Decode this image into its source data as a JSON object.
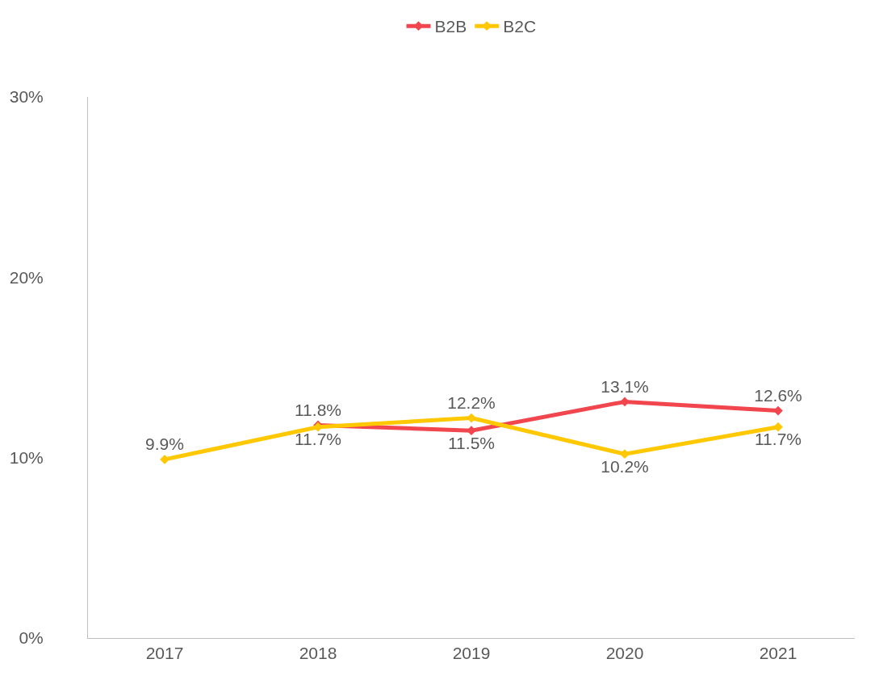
{
  "chart_data": {
    "type": "line",
    "categories": [
      "2017",
      "2018",
      "2019",
      "2020",
      "2021"
    ],
    "series": [
      {
        "name": "B2B",
        "color": "#f2464f",
        "values": [
          null,
          11.8,
          11.5,
          13.1,
          12.6
        ],
        "value_labels": [
          null,
          "11.8%",
          "11.5%",
          "13.1%",
          "12.6%"
        ]
      },
      {
        "name": "B2C",
        "color": "#ffc800",
        "values": [
          9.9,
          11.7,
          12.2,
          10.2,
          11.7
        ],
        "value_labels": [
          "9.9%",
          "11.7%",
          "12.2%",
          "10.2%",
          "11.7%"
        ]
      }
    ],
    "ylim": [
      0,
      30
    ],
    "yticks": [
      {
        "value": 0,
        "label": "0%"
      },
      {
        "value": 10,
        "label": "10%"
      },
      {
        "value": 20,
        "label": "20%"
      },
      {
        "value": 30,
        "label": "30%"
      }
    ],
    "legend": "top",
    "marker": "diamond",
    "line_style": "solid"
  }
}
